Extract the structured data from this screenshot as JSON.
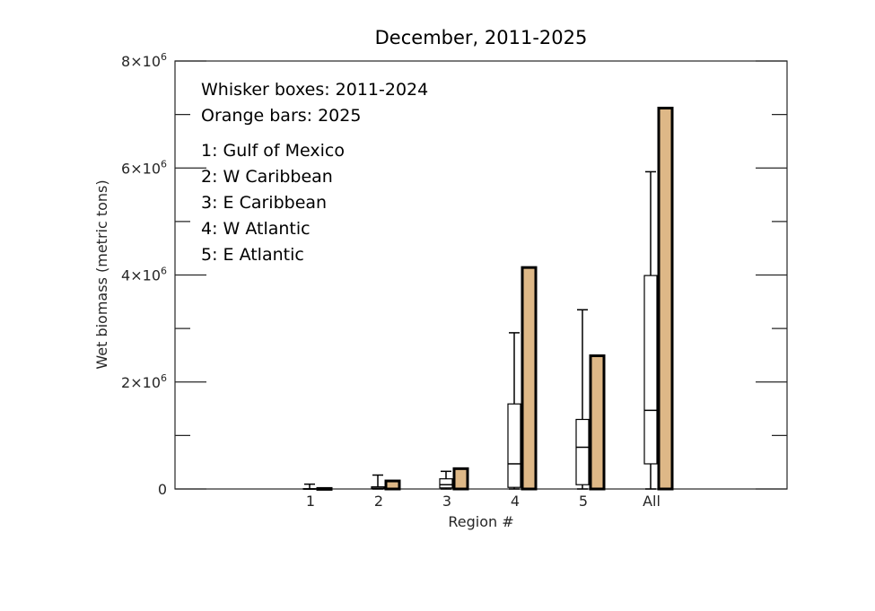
{
  "chart_data": {
    "type": "box+bar",
    "title": "December, 2011-2025",
    "xlabel": "Region #",
    "ylabel": "Wet biomass (metric tons)",
    "ylim": [
      0,
      8000000
    ],
    "yticks": [
      {
        "value": 0,
        "base": "0",
        "exp": ""
      },
      {
        "value": 2000000,
        "base": "2×10",
        "exp": "6"
      },
      {
        "value": 4000000,
        "base": "4×10",
        "exp": "6"
      },
      {
        "value": 6000000,
        "base": "6×10",
        "exp": "6"
      },
      {
        "value": 8000000,
        "base": "8×10",
        "exp": "6"
      }
    ],
    "categories": [
      "1",
      "2",
      "3",
      "4",
      "5",
      "All"
    ],
    "box_series": {
      "name": "2011-2024",
      "boxes": [
        {
          "whisker_low": 0,
          "q1": 0,
          "median": 0,
          "q3": 5000,
          "whisker_high": 90000
        },
        {
          "whisker_low": 0,
          "q1": 5000,
          "median": 15000,
          "q3": 40000,
          "whisker_high": 260000
        },
        {
          "whisker_low": 0,
          "q1": 20000,
          "median": 80000,
          "q3": 190000,
          "whisker_high": 330000
        },
        {
          "whisker_low": 0,
          "q1": 30000,
          "median": 470000,
          "q3": 1590000,
          "whisker_high": 2920000
        },
        {
          "whisker_low": 0,
          "q1": 80000,
          "median": 780000,
          "q3": 1300000,
          "whisker_high": 3350000
        },
        {
          "whisker_low": 0,
          "q1": 470000,
          "median": 1470000,
          "q3": 3990000,
          "whisker_high": 5930000
        }
      ]
    },
    "bar_series": {
      "name": "2025",
      "color": "#deb887",
      "values": [
        10000,
        150000,
        380000,
        4140000,
        2490000,
        7120000
      ]
    },
    "annotations": {
      "legend_lines": [
        "Whisker boxes: 2011-2024",
        "Orange bars: 2025"
      ],
      "region_lines": [
        "1: Gulf of Mexico",
        "2: W Caribbean",
        "3: E Caribbean",
        "4: W Atlantic",
        "5: E Atlantic"
      ]
    }
  }
}
